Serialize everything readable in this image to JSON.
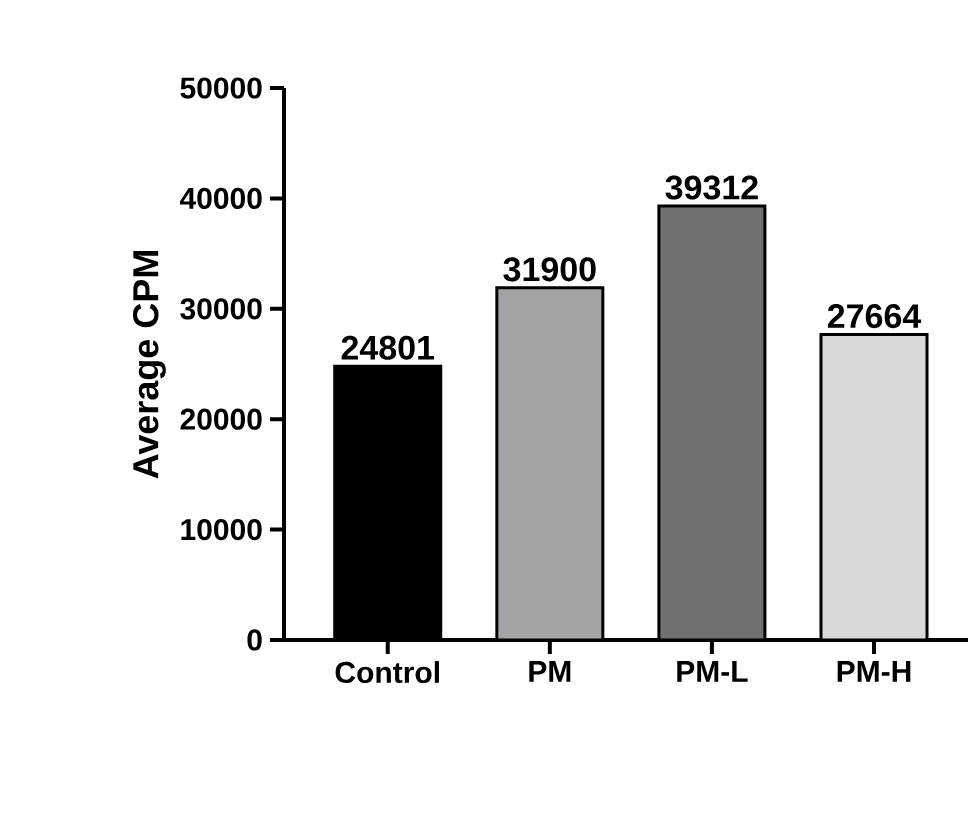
{
  "chart_data": {
    "type": "bar",
    "ylabel": "Average CPM",
    "categories": [
      "Control",
      "PM",
      "PM-L",
      "PM-H"
    ],
    "values": [
      24801,
      31900,
      39312,
      27664
    ],
    "colors": [
      "#000000",
      "#a3a3a7",
      "#707070",
      "#d9d9d9"
    ],
    "ylim": [
      0,
      50000
    ],
    "yticks": [
      0,
      10000,
      20000,
      30000,
      40000,
      50000
    ],
    "data_labels": true,
    "grid": false
  }
}
